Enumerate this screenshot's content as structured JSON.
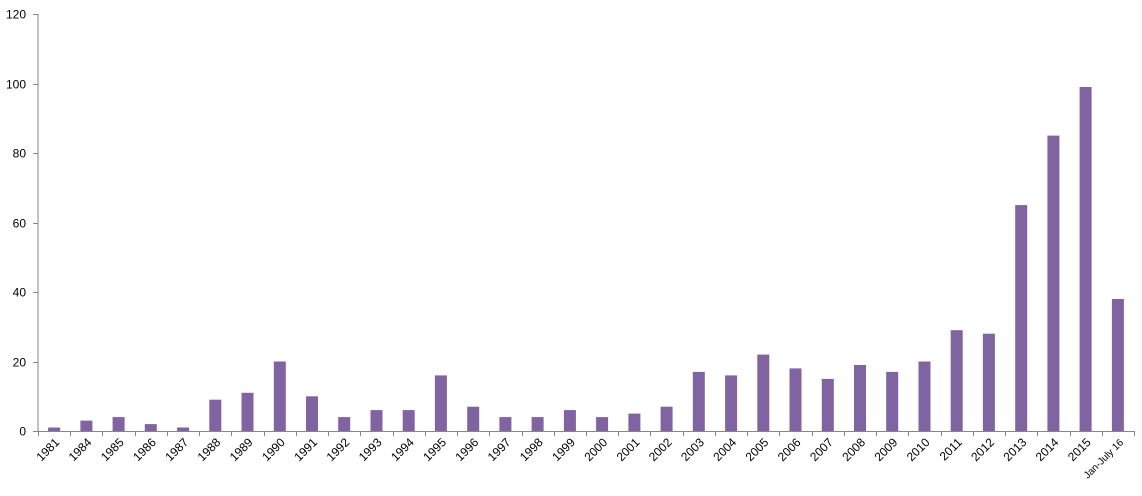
{
  "chart_data": {
    "type": "bar",
    "categories": [
      "1981",
      "1984",
      "1985",
      "1986",
      "1987",
      "1988",
      "1989",
      "1990",
      "1991",
      "1992",
      "1993",
      "1994",
      "1995",
      "1996",
      "1997",
      "1998",
      "1999",
      "2000",
      "2001",
      "2002",
      "2003",
      "2004",
      "2005",
      "2006",
      "2007",
      "2008",
      "2009",
      "2010",
      "2011",
      "2012",
      "2013",
      "2014",
      "2015",
      "Jan-July 16"
    ],
    "values": [
      1,
      3,
      4,
      2,
      1,
      9,
      11,
      20,
      10,
      4,
      6,
      6,
      16,
      7,
      4,
      4,
      6,
      4,
      5,
      7,
      17,
      16,
      22,
      18,
      15,
      19,
      17,
      20,
      29,
      28,
      65,
      85,
      99,
      38
    ],
    "ylim": [
      0,
      120
    ],
    "yticks": [
      0,
      20,
      40,
      60,
      80,
      100,
      120
    ],
    "bar_color": "#8064a2",
    "axis_color": "#868686",
    "grid": false,
    "legend": "none"
  }
}
